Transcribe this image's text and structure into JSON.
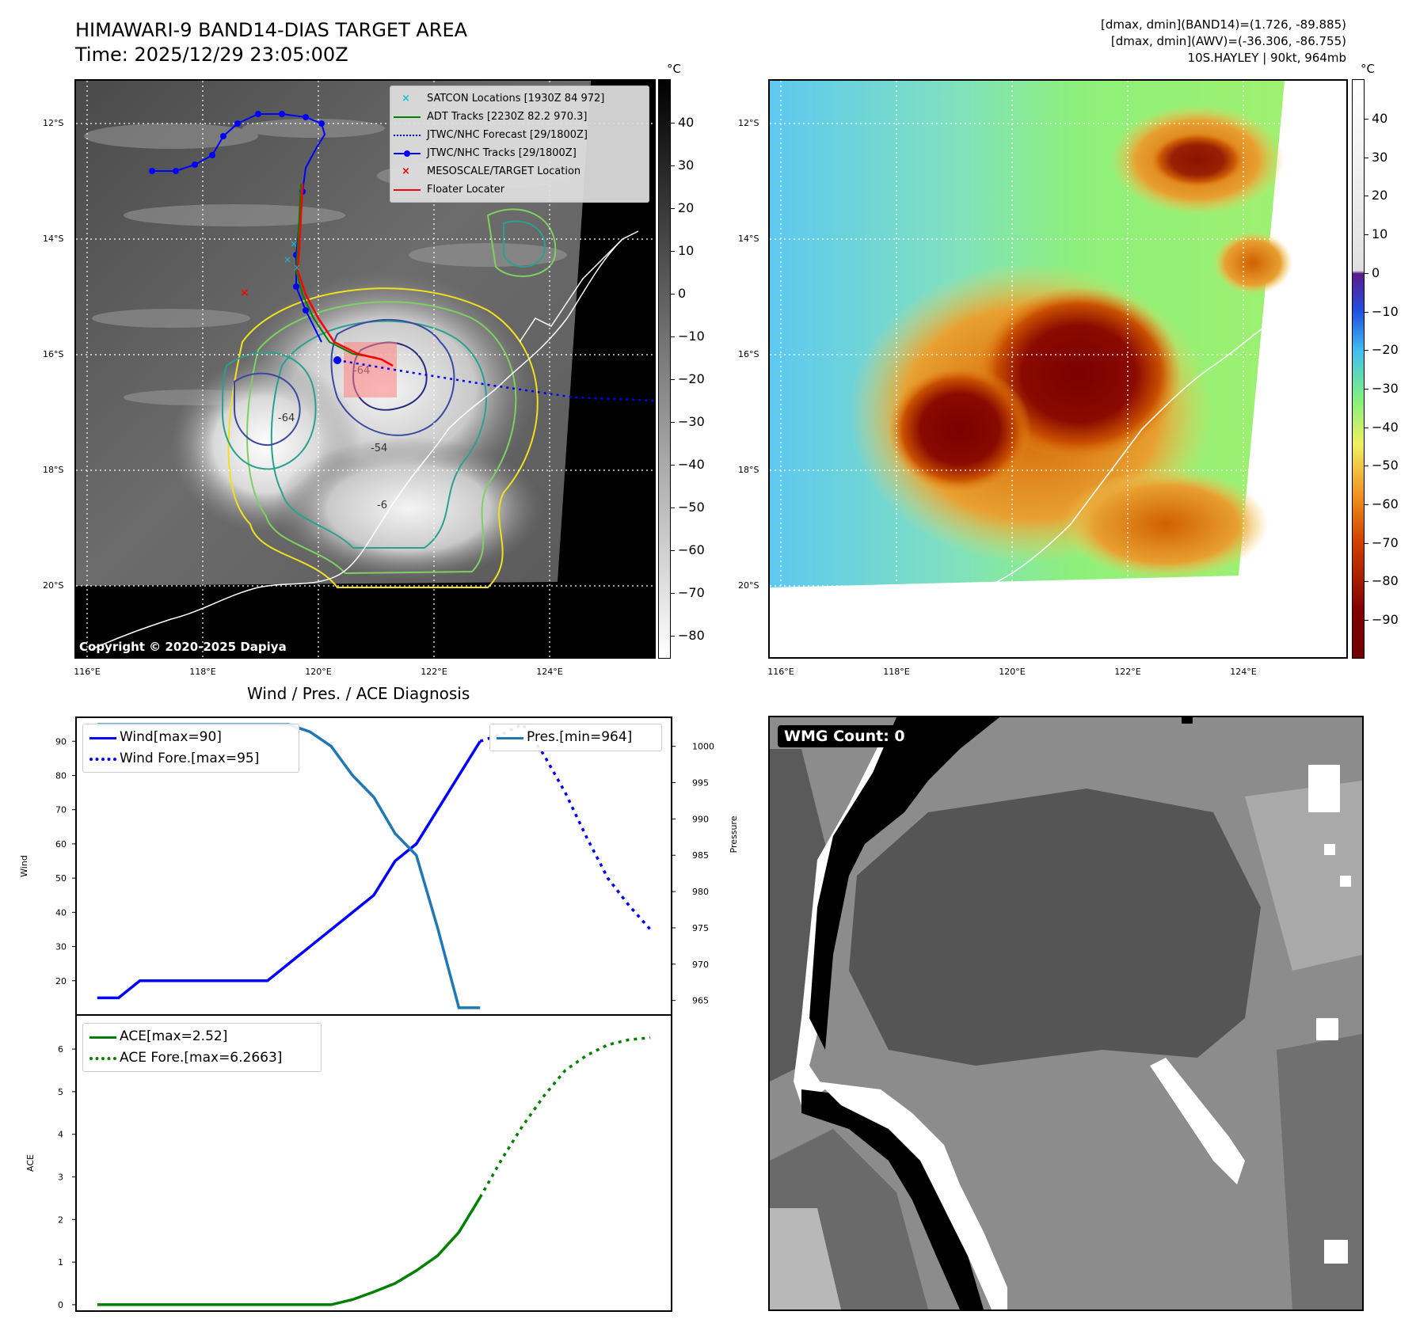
{
  "header": {
    "title": "HIMAWARI-9 BAND14-DIAS TARGET AREA",
    "time": "Time: 2025/12/29 23:05:00Z",
    "info_line1": "[dmax, dmin](BAND14)=(1.726, -89.885)",
    "info_line2": "[dmax, dmin](AWV)=(-36.306, -86.755)",
    "info_line3": "10S.HAYLEY | 90kt, 964mb"
  },
  "map_axes": {
    "lon_labels": [
      "116°E",
      "118°E",
      "120°E",
      "122°E",
      "124°E"
    ],
    "lat_labels": [
      "12°S",
      "14°S",
      "16°S",
      "18°S",
      "20°S"
    ]
  },
  "ir_panel": {
    "copyright": "Copyright © 2020-2025 Dapiya",
    "colorbar_unit": "°C",
    "colorbar_ticks": [
      "40",
      "30",
      "20",
      "10",
      "0",
      "−10",
      "−20",
      "−30",
      "−40",
      "−50",
      "−60",
      "−70",
      "−80"
    ],
    "contour_labels": [
      "-64",
      "-64",
      "-54",
      "-6"
    ],
    "legend": [
      {
        "label": "SATCON Locations [1930Z 84 972]",
        "color": "#17becf",
        "marker": "x"
      },
      {
        "label": "ADT Tracks [2230Z 82.2 970.3]",
        "color": "#008000",
        "marker": "line"
      },
      {
        "label": "JTWC/NHC Forecast [29/1800Z]",
        "color": "#0000ff",
        "marker": "dotted"
      },
      {
        "label": "JTWC/NHC Tracks [29/1800Z]",
        "color": "#0000ff",
        "marker": "line-dot"
      },
      {
        "label": "MESOSCALE/TARGET Location",
        "color": "#ff0000",
        "marker": "x"
      },
      {
        "label": "Floater Locater",
        "color": "#ff0000",
        "marker": "line"
      }
    ]
  },
  "awv_panel": {
    "colorbar_unit": "°C",
    "colorbar_ticks": [
      "40",
      "30",
      "20",
      "10",
      "0",
      "−10",
      "−20",
      "−30",
      "−40",
      "−50",
      "−60",
      "−70",
      "−80",
      "−90"
    ]
  },
  "wmg_panel": {
    "label": "WMG Count: 0"
  },
  "chart_data": [
    {
      "type": "line",
      "title": "Wind / Pres. / ACE Diagnosis",
      "ylabel": "Wind",
      "ylabel_right": "Pressure",
      "ylim": [
        10,
        97
      ],
      "ylim_right": [
        963,
        1004
      ],
      "yticks": [
        20,
        30,
        40,
        50,
        60,
        70,
        80,
        90
      ],
      "yticks_right": [
        965,
        970,
        975,
        980,
        985,
        990,
        995,
        1000
      ],
      "x": [
        0,
        1,
        2,
        3,
        4,
        5,
        6,
        7,
        8,
        9,
        10,
        11,
        12,
        13,
        14,
        15,
        16,
        17,
        18,
        19,
        20,
        21,
        22,
        23,
        24
      ],
      "series": [
        {
          "name": "Wind[max=90]",
          "color": "#0000ff",
          "style": "solid",
          "axis": "left",
          "x": [
            0,
            1,
            2,
            3,
            4,
            5,
            6,
            7,
            8,
            9,
            10,
            11,
            12,
            13,
            14,
            15,
            16,
            17,
            18
          ],
          "values": [
            15,
            15,
            20,
            20,
            20,
            20,
            20,
            20,
            20,
            25,
            30,
            35,
            40,
            45,
            55,
            60,
            70,
            80,
            90
          ]
        },
        {
          "name": "Wind Fore.[max=95]",
          "color": "#0000ff",
          "style": "dotted",
          "axis": "left",
          "x": [
            18,
            19,
            20,
            21,
            22,
            23,
            24,
            25,
            26
          ],
          "values": [
            90,
            92,
            95,
            86,
            75,
            62,
            50,
            42,
            35
          ]
        },
        {
          "name": "Pres.[min=964]",
          "color": "#1f77b4",
          "style": "solid",
          "axis": "right",
          "x": [
            0,
            1,
            2,
            3,
            4,
            5,
            6,
            7,
            8,
            9,
            10,
            11,
            12,
            13,
            14,
            15,
            16,
            17,
            18
          ],
          "values": [
            1003,
            1003,
            1003,
            1003,
            1003,
            1003,
            1003,
            1003,
            1003,
            1003,
            1002,
            1000,
            996,
            993,
            988,
            985,
            975,
            964,
            964
          ]
        }
      ]
    },
    {
      "type": "line",
      "ylabel": "ACE",
      "ylim": [
        -0.15,
        6.8
      ],
      "yticks": [
        0,
        1,
        2,
        3,
        4,
        5,
        6
      ],
      "series": [
        {
          "name": "ACE[max=2.52]",
          "color": "#008000",
          "style": "solid",
          "x": [
            0,
            1,
            2,
            3,
            4,
            5,
            6,
            7,
            8,
            9,
            10,
            11,
            12,
            13,
            14,
            15,
            16,
            17,
            18
          ],
          "values": [
            0,
            0,
            0,
            0,
            0,
            0,
            0,
            0,
            0,
            0,
            0,
            0,
            0.12,
            0.3,
            0.5,
            0.8,
            1.15,
            1.7,
            2.52
          ]
        },
        {
          "name": "ACE Fore.[max=6.2663]",
          "color": "#008000",
          "style": "dotted",
          "x": [
            18,
            19,
            20,
            21,
            22,
            23,
            24,
            25,
            26
          ],
          "values": [
            2.52,
            3.4,
            4.2,
            4.9,
            5.5,
            5.85,
            6.1,
            6.22,
            6.2663
          ]
        }
      ]
    }
  ]
}
